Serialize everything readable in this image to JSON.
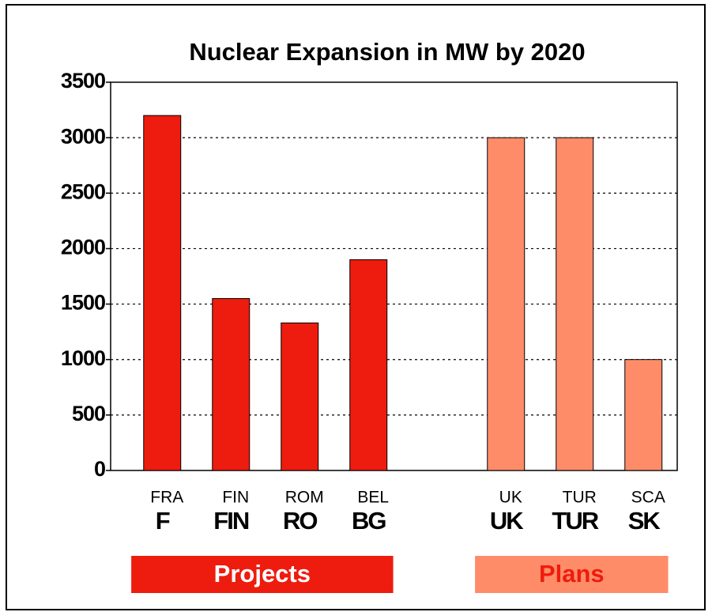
{
  "chart_data": {
    "type": "bar",
    "title": "Nuclear Expansion in MW by 2020",
    "categories": [
      "F",
      "FIN",
      "RO",
      "BG",
      null,
      "UK",
      "TUR",
      "SK"
    ],
    "category_codes": [
      "FRA",
      "FIN",
      "ROM",
      "BEL",
      null,
      "UK",
      "TUR",
      "SCA"
    ],
    "series": [
      {
        "name": "Projects",
        "color": "#ee1c0e",
        "values": [
          3200,
          1550,
          1330,
          1900,
          null,
          null,
          null,
          null
        ]
      },
      {
        "name": "Plans",
        "color": "#ff8c69",
        "values": [
          null,
          null,
          null,
          null,
          null,
          3000,
          3000,
          1000
        ]
      }
    ],
    "ylim": [
      0,
      3500
    ],
    "yticks": [
      0,
      500,
      1000,
      1500,
      2000,
      2500,
      3000,
      3500
    ],
    "grid": true
  }
}
